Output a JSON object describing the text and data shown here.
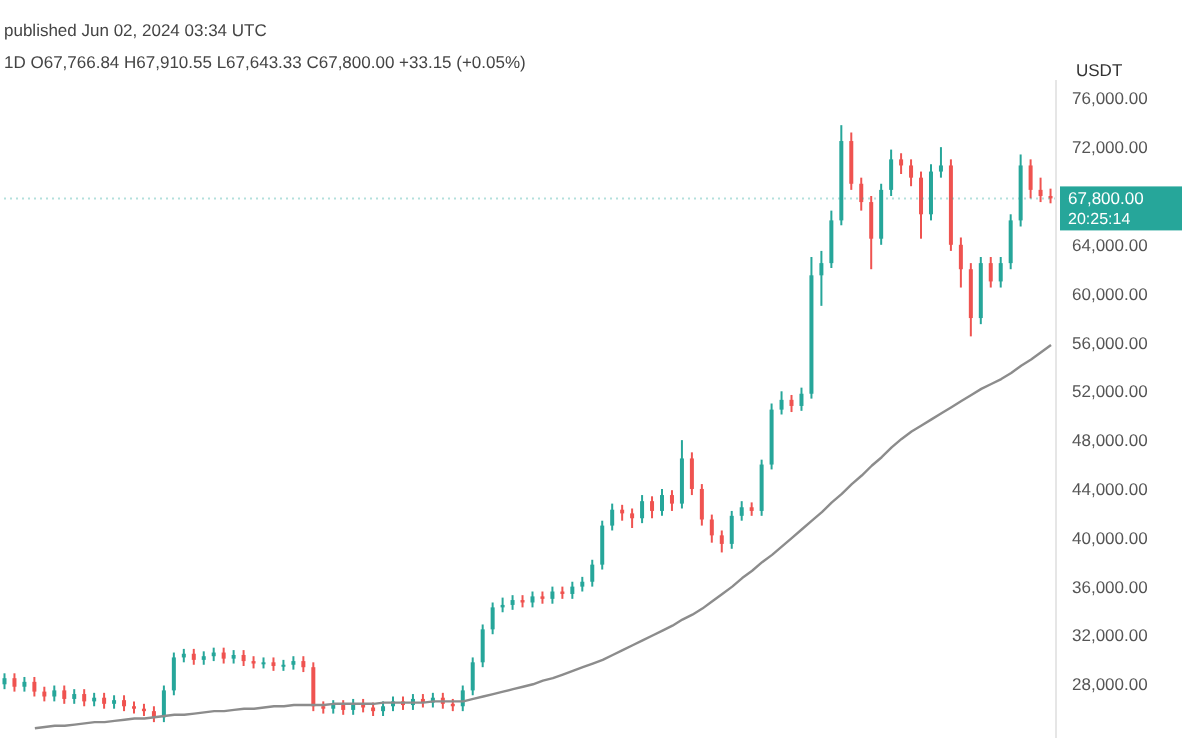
{
  "chart_data": {
    "type": "candlestick",
    "title": "published Jun 02, 2024 03:34 UTC",
    "subtitle": "1D O67,766.84 H67,910.55 L67,643.33 C67,800.00 +33.15 (+0.05%)",
    "ylabel": "USDT",
    "annotations": [
      "20:25:14"
    ],
    "tick_labels": "y",
    "categories": [
      null,
      null,
      null,
      null,
      null,
      null,
      null,
      null,
      null,
      null,
      null,
      null,
      null,
      null,
      null,
      null,
      null,
      null,
      null,
      null,
      null,
      null,
      null,
      null,
      null,
      null,
      null,
      null,
      null,
      null,
      null,
      null,
      null,
      null,
      null,
      null,
      null,
      null,
      null,
      null,
      null,
      null,
      null,
      null,
      null,
      null,
      null,
      null,
      null,
      null,
      null,
      null,
      null,
      null,
      null,
      null,
      null,
      null,
      null,
      null,
      null,
      null,
      null,
      null,
      null,
      null,
      null,
      null,
      null,
      null,
      null,
      null,
      null,
      null,
      null,
      null,
      null,
      null,
      null,
      null,
      null,
      null,
      null,
      null,
      null,
      null,
      null,
      null,
      null,
      null,
      null,
      null,
      null,
      null,
      null,
      null,
      null,
      null,
      null,
      null,
      null,
      null,
      null,
      null,
      null,
      null
    ],
    "ohlc": [
      [
        28000,
        28900,
        27600,
        28500
      ],
      [
        28500,
        28900,
        27400,
        27800
      ],
      [
        27800,
        28600,
        27400,
        28200
      ],
      [
        28200,
        28600,
        27000,
        27400
      ],
      [
        27400,
        27800,
        26600,
        27000
      ],
      [
        27000,
        27900,
        26600,
        27500
      ],
      [
        27500,
        27900,
        26400,
        26800
      ],
      [
        26800,
        27600,
        26400,
        27200
      ],
      [
        27200,
        27600,
        26200,
        26600
      ],
      [
        26600,
        27300,
        26200,
        26900
      ],
      [
        26900,
        27300,
        26000,
        26400
      ],
      [
        26400,
        27100,
        26000,
        26700
      ],
      [
        26700,
        27100,
        25800,
        26200
      ],
      [
        26200,
        26600,
        25600,
        26000
      ],
      [
        26000,
        26400,
        25400,
        25800
      ],
      [
        25800,
        26200,
        24900,
        25300
      ],
      [
        25300,
        27900,
        24900,
        27500
      ],
      [
        27500,
        30600,
        27100,
        30200
      ],
      [
        30200,
        30900,
        29800,
        30500
      ],
      [
        30500,
        30900,
        29600,
        30000
      ],
      [
        30000,
        30700,
        29600,
        30300
      ],
      [
        30300,
        31000,
        29900,
        30600
      ],
      [
        30600,
        31000,
        29700,
        30100
      ],
      [
        30100,
        30800,
        29700,
        30400
      ],
      [
        30400,
        30800,
        29500,
        29900
      ],
      [
        29900,
        30300,
        29300,
        29700
      ],
      [
        29700,
        30200,
        29300,
        29800
      ],
      [
        29800,
        30200,
        29100,
        29500
      ],
      [
        29500,
        30000,
        29100,
        29600
      ],
      [
        29600,
        30300,
        29200,
        29900
      ],
      [
        29900,
        30300,
        29000,
        29400
      ],
      [
        29400,
        29800,
        25800,
        26200
      ],
      [
        26200,
        26600,
        25600,
        26000
      ],
      [
        26000,
        26700,
        25600,
        26300
      ],
      [
        26300,
        26700,
        25500,
        25900
      ],
      [
        25900,
        26800,
        25500,
        26400
      ],
      [
        26400,
        26800,
        25700,
        26100
      ],
      [
        26100,
        26500,
        25400,
        25800
      ],
      [
        25800,
        26600,
        25400,
        26200
      ],
      [
        26200,
        27000,
        25800,
        26600
      ],
      [
        26600,
        27000,
        25900,
        26300
      ],
      [
        26300,
        27200,
        25900,
        26800
      ],
      [
        26800,
        27200,
        26100,
        26500
      ],
      [
        26500,
        27300,
        26100,
        26900
      ],
      [
        26900,
        27300,
        26000,
        26400
      ],
      [
        26400,
        26800,
        25800,
        26200
      ],
      [
        26200,
        27900,
        25800,
        27500
      ],
      [
        27500,
        30200,
        27100,
        29800
      ],
      [
        29800,
        32900,
        29400,
        32500
      ],
      [
        32500,
        34700,
        32100,
        34300
      ],
      [
        34300,
        35100,
        33900,
        34500
      ],
      [
        34500,
        35300,
        34100,
        34900
      ],
      [
        34900,
        35300,
        34300,
        34700
      ],
      [
        34700,
        35600,
        34300,
        35200
      ],
      [
        35200,
        35600,
        34600,
        35000
      ],
      [
        35000,
        36000,
        34600,
        35600
      ],
      [
        35600,
        36000,
        35000,
        35400
      ],
      [
        35400,
        36400,
        35000,
        36000
      ],
      [
        36000,
        36800,
        35600,
        36400
      ],
      [
        36400,
        38200,
        36000,
        37800
      ],
      [
        37800,
        41400,
        37400,
        41000
      ],
      [
        41000,
        42800,
        40600,
        42300
      ],
      [
        42300,
        42700,
        41400,
        42000
      ],
      [
        42000,
        42400,
        40800,
        41600
      ],
      [
        41600,
        43500,
        41200,
        43000
      ],
      [
        43000,
        43400,
        41600,
        42200
      ],
      [
        42200,
        44000,
        41800,
        43500
      ],
      [
        43500,
        43900,
        42200,
        42800
      ],
      [
        42800,
        48000,
        42400,
        46500
      ],
      [
        46500,
        47000,
        43500,
        44000
      ],
      [
        44000,
        44400,
        41000,
        41500
      ],
      [
        41500,
        41900,
        39600,
        40200
      ],
      [
        40200,
        40600,
        38800,
        39500
      ],
      [
        39500,
        42200,
        39100,
        41800
      ],
      [
        41800,
        43000,
        41400,
        42500
      ],
      [
        42500,
        42900,
        41800,
        42200
      ],
      [
        42200,
        46400,
        41800,
        46000
      ],
      [
        46000,
        51000,
        45600,
        50500
      ],
      [
        50500,
        52000,
        50100,
        51300
      ],
      [
        51300,
        51700,
        50300,
        50800
      ],
      [
        50800,
        52300,
        50400,
        51800
      ],
      [
        51800,
        63000,
        51400,
        61500
      ],
      [
        61500,
        63500,
        59000,
        62500
      ],
      [
        62500,
        66800,
        62100,
        66000
      ],
      [
        66000,
        73800,
        65600,
        72500
      ],
      [
        72500,
        73200,
        68500,
        69000
      ],
      [
        69000,
        69500,
        66800,
        67500
      ],
      [
        67500,
        68000,
        62000,
        64500
      ],
      [
        64500,
        69000,
        64000,
        68500
      ],
      [
        68500,
        71800,
        68000,
        71000
      ],
      [
        71000,
        71500,
        69800,
        70500
      ],
      [
        70500,
        71000,
        68800,
        69500
      ],
      [
        69500,
        70000,
        64500,
        66500
      ],
      [
        66500,
        70600,
        66000,
        70000
      ],
      [
        70000,
        72000,
        69500,
        70500
      ],
      [
        70500,
        71000,
        63500,
        64000
      ],
      [
        64000,
        64600,
        60500,
        62000
      ],
      [
        62000,
        62500,
        56500,
        58000
      ],
      [
        58000,
        63000,
        57500,
        62500
      ],
      [
        62500,
        63000,
        60500,
        61000
      ],
      [
        61000,
        63000,
        60500,
        62500
      ],
      [
        62500,
        66500,
        62000,
        66000
      ],
      [
        66000,
        71400,
        65500,
        70500
      ],
      [
        70500,
        71000,
        67800,
        68500
      ],
      [
        68500,
        69500,
        67500,
        68000
      ],
      [
        68000,
        68600,
        67400,
        67800
      ]
    ],
    "colors": [
      "#26a69a",
      "#ef5350",
      "#26a69a",
      "#ef5350",
      "#ef5350",
      "#26a69a",
      "#ef5350",
      "#26a69a",
      "#ef5350",
      "#26a69a",
      "#ef5350",
      "#26a69a",
      "#ef5350",
      "#ef5350",
      "#ef5350",
      "#ef5350",
      "#26a69a",
      "#26a69a",
      "#26a69a",
      "#ef5350",
      "#26a69a",
      "#26a69a",
      "#ef5350",
      "#26a69a",
      "#ef5350",
      "#ef5350",
      "#26a69a",
      "#ef5350",
      "#26a69a",
      "#26a69a",
      "#ef5350",
      "#ef5350",
      "#ef5350",
      "#26a69a",
      "#ef5350",
      "#26a69a",
      "#ef5350",
      "#ef5350",
      "#26a69a",
      "#26a69a",
      "#ef5350",
      "#26a69a",
      "#ef5350",
      "#26a69a",
      "#ef5350",
      "#ef5350",
      "#26a69a",
      "#26a69a",
      "#26a69a",
      "#26a69a",
      "#26a69a",
      "#26a69a",
      "#ef5350",
      "#26a69a",
      "#ef5350",
      "#26a69a",
      "#ef5350",
      "#26a69a",
      "#26a69a",
      "#26a69a",
      "#26a69a",
      "#26a69a",
      "#ef5350",
      "#ef5350",
      "#26a69a",
      "#ef5350",
      "#26a69a",
      "#ef5350",
      "#26a69a",
      "#ef5350",
      "#ef5350",
      "#ef5350",
      "#ef5350",
      "#26a69a",
      "#26a69a",
      "#ef5350",
      "#26a69a",
      "#26a69a",
      "#26a69a",
      "#ef5350",
      "#26a69a",
      "#26a69a",
      "#26a69a",
      "#26a69a",
      "#26a69a",
      "#ef5350",
      "#ef5350",
      "#ef5350",
      "#26a69a",
      "#26a69a",
      "#ef5350",
      "#ef5350",
      "#ef5350",
      "#26a69a",
      "#26a69a",
      "#ef5350",
      "#ef5350",
      "#ef5350",
      "#26a69a",
      "#ef5350",
      "#26a69a",
      "#26a69a",
      "#26a69a",
      "#ef5350",
      "#ef5350",
      "#ef5350"
    ],
    "series": [
      {
        "type": "line",
        "color": "#8c8c8c",
        "values": [
          null,
          null,
          null,
          24400,
          24500,
          24600,
          24600,
          24700,
          24800,
          24900,
          24900,
          25000,
          25100,
          25200,
          25200,
          25300,
          25400,
          25500,
          25500,
          25600,
          25700,
          25800,
          25800,
          25900,
          26000,
          26000,
          26100,
          26200,
          26200,
          26300,
          26300,
          26300,
          26300,
          26400,
          26400,
          26400,
          26400,
          26400,
          26500,
          26500,
          26500,
          26500,
          26500,
          26600,
          26600,
          26600,
          26600,
          26800,
          27000,
          27200,
          27400,
          27600,
          27800,
          28000,
          28300,
          28500,
          28800,
          29100,
          29400,
          29700,
          30000,
          30400,
          30800,
          31200,
          31600,
          32000,
          32400,
          32800,
          33300,
          33700,
          34200,
          34800,
          35400,
          36000,
          36700,
          37300,
          38000,
          38600,
          39300,
          40000,
          40700,
          41400,
          42100,
          42900,
          43600,
          44400,
          45100,
          45900,
          46600,
          47400,
          48100,
          48700,
          49200,
          49700,
          50200,
          50700,
          51200,
          51700,
          52200,
          52600,
          53000,
          53500,
          54100,
          54600,
          55200,
          55800
        ]
      }
    ],
    "ylim": [
      23600,
      77500
    ],
    "yticks": [
      {
        "value": 28000,
        "label": "28,000.00"
      },
      {
        "value": 32000,
        "label": "32,000.00"
      },
      {
        "value": 36000,
        "label": "36,000.00"
      },
      {
        "value": 40000,
        "label": "40,000.00"
      },
      {
        "value": 44000,
        "label": "44,000.00"
      },
      {
        "value": 48000,
        "label": "48,000.00"
      },
      {
        "value": 52000,
        "label": "52,000.00"
      },
      {
        "value": 56000,
        "label": "56,000.00"
      },
      {
        "value": 60000,
        "label": "60,000.00"
      },
      {
        "value": 64000,
        "label": "64,000.00"
      },
      {
        "value": 72000,
        "label": "72,000.00"
      },
      {
        "value": 76000,
        "label": "76,000.00"
      }
    ],
    "ref_lines": [
      {
        "axis": "y",
        "value": 67800,
        "label": "67,800.00",
        "color": "#26a69a"
      }
    ]
  }
}
